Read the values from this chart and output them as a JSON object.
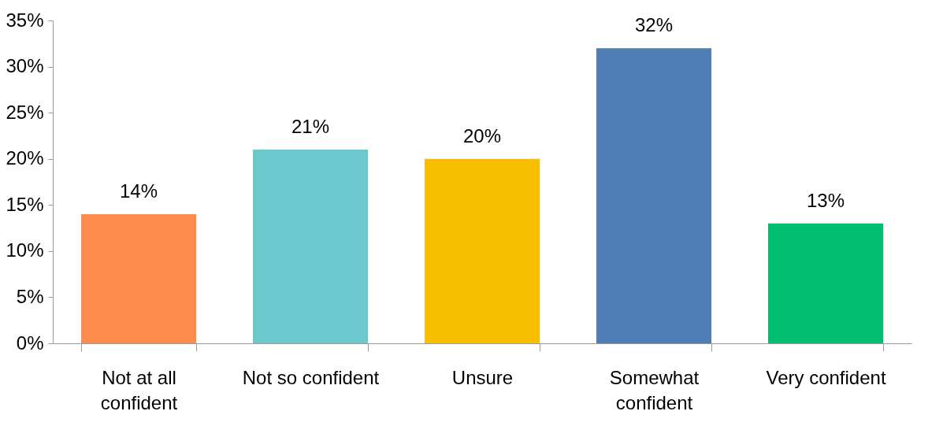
{
  "chart_data": {
    "type": "bar",
    "categories": [
      "Not at all confident",
      "Not so confident",
      "Unsure",
      "Somewhat confident",
      "Very confident"
    ],
    "values": [
      14,
      21,
      20,
      32,
      13
    ],
    "colors": [
      "#ff8c4f",
      "#6cc8cd",
      "#f8be00",
      "#4f7db5",
      "#00bf6f"
    ],
    "ylim": [
      0,
      35
    ],
    "yticks": [
      {
        "value": 0,
        "label": "0%"
      },
      {
        "value": 5,
        "label": "5%"
      },
      {
        "value": 10,
        "label": "10%"
      },
      {
        "value": 15,
        "label": "15%"
      },
      {
        "value": 20,
        "label": "20%"
      },
      {
        "value": 25,
        "label": "25%"
      },
      {
        "value": 30,
        "label": "30%"
      },
      {
        "value": 35,
        "label": "35%"
      }
    ],
    "value_labels": [
      "14%",
      "21%",
      "20%",
      "32%",
      "13%"
    ],
    "grid": false,
    "legend": false
  }
}
